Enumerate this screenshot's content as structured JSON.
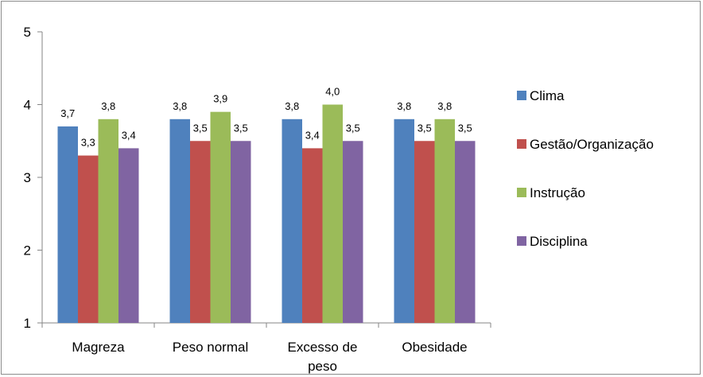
{
  "chart_data": {
    "type": "bar",
    "categories": [
      [
        "Magreza"
      ],
      [
        "Peso normal"
      ],
      [
        "Excesso de",
        "peso"
      ],
      [
        "Obesidade"
      ]
    ],
    "series": [
      {
        "name": "Clima",
        "color": "#4f81bd",
        "values": [
          3.7,
          3.8,
          3.8,
          3.8
        ],
        "labels": [
          "3,7",
          "3,8",
          "3,8",
          "3,8"
        ]
      },
      {
        "name": "Gestão/Organização",
        "color": "#c0504d",
        "values": [
          3.3,
          3.5,
          3.4,
          3.5
        ],
        "labels": [
          "3,3",
          "3,5",
          "3,4",
          "3,5"
        ]
      },
      {
        "name": "Instrução",
        "color": "#9bbb59",
        "values": [
          3.8,
          3.9,
          4.0,
          3.8
        ],
        "labels": [
          "3,8",
          "3,9",
          "4,0",
          "3,8"
        ]
      },
      {
        "name": "Disciplina",
        "color": "#8064a2",
        "values": [
          3.4,
          3.5,
          3.5,
          3.5
        ],
        "labels": [
          "3,4",
          "3,5",
          "3,5",
          "3,5"
        ]
      }
    ],
    "ylim": [
      1,
      5
    ],
    "yticks": [
      "1",
      "2",
      "3",
      "4",
      "5"
    ],
    "grid": false,
    "legend": "right"
  }
}
